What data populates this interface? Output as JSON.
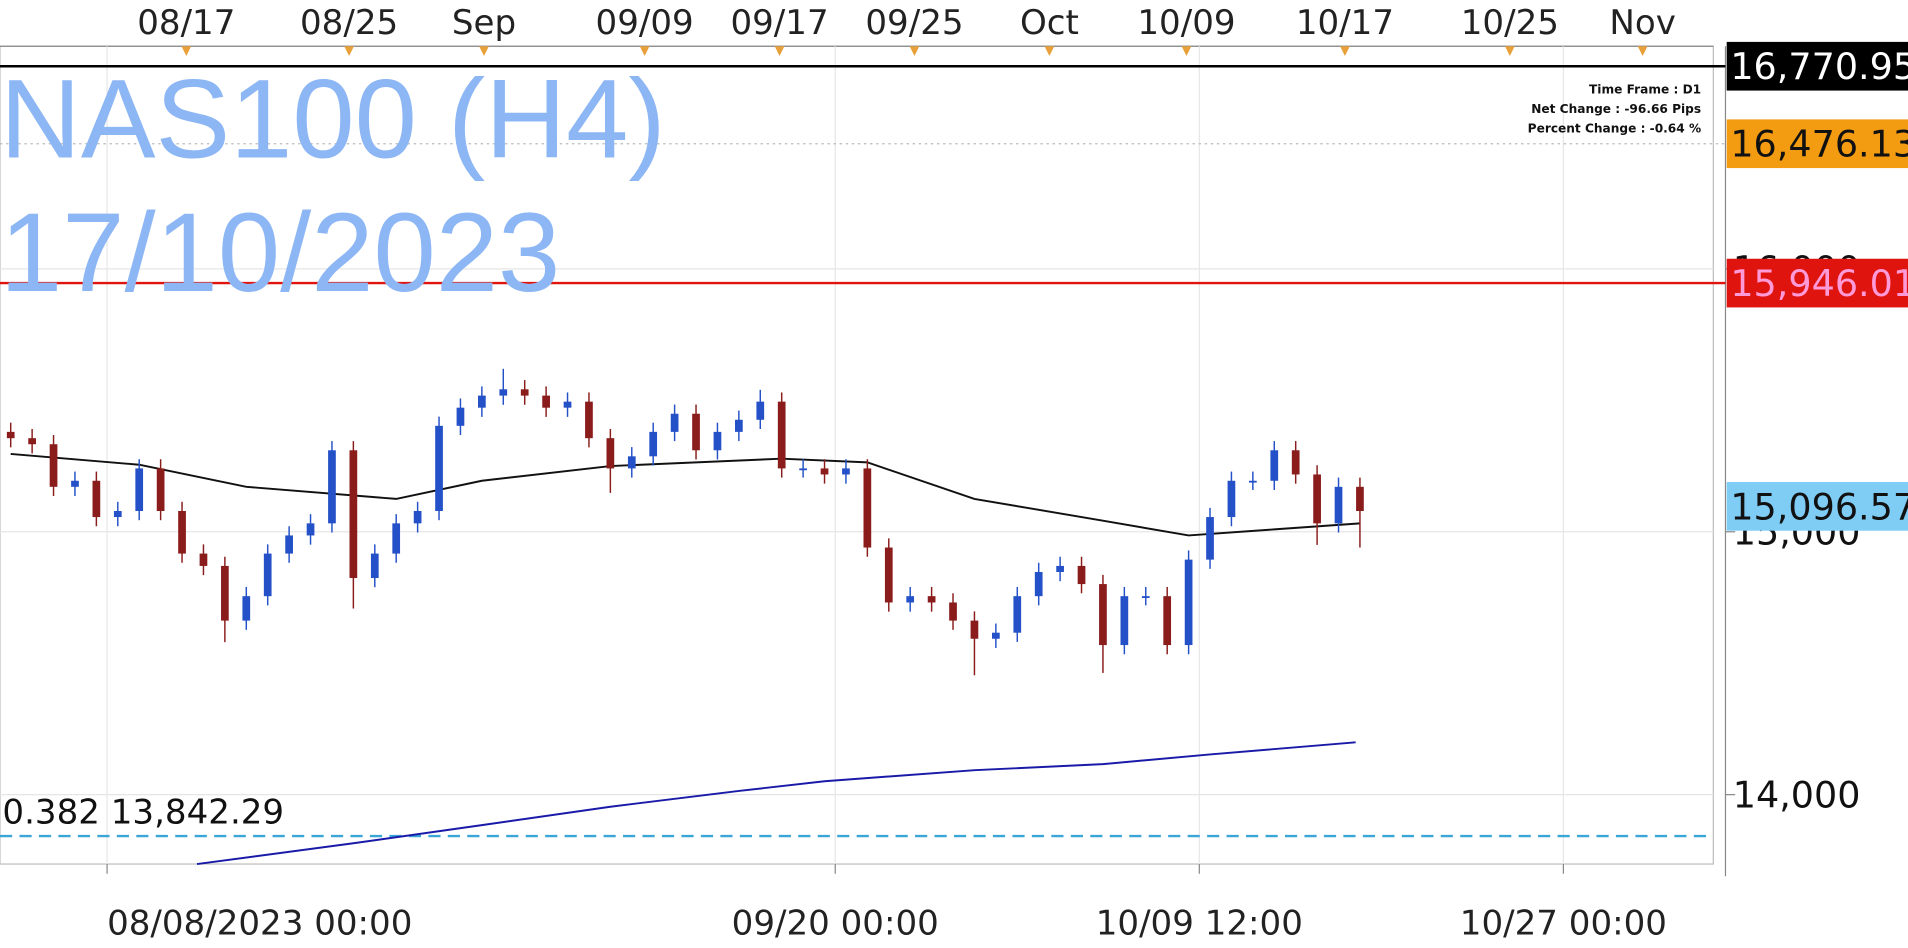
{
  "chart_data": {
    "type": "candlestick",
    "title": "NAS100 (H4)",
    "subtitle": "17/10/2023",
    "info": [
      "Time Frame : D1",
      "Net Change : -96.66 Pips",
      "Percent Change : -0.64 %"
    ],
    "xlim": [
      0,
      80
    ],
    "ylim": [
      13736,
      16847
    ],
    "yticks": [
      {
        "value": 14000,
        "label": "14,000"
      },
      {
        "value": 15000,
        "label": "15,000"
      },
      {
        "value": 16000,
        "label": "16,000"
      }
    ],
    "top_xticks": [
      {
        "value": 8.7,
        "label": "08/17"
      },
      {
        "value": 16.3,
        "label": "08/25"
      },
      {
        "value": 22.6,
        "label": "Sep"
      },
      {
        "value": 30.1,
        "label": "09/09"
      },
      {
        "value": 36.4,
        "label": "09/17"
      },
      {
        "value": 42.7,
        "label": "09/25"
      },
      {
        "value": 49,
        "label": "Oct"
      },
      {
        "value": 55.4,
        "label": "10/09"
      },
      {
        "value": 62.8,
        "label": "10/17"
      },
      {
        "value": 70.5,
        "label": "10/25"
      },
      {
        "value": 76.7,
        "label": "Nov"
      }
    ],
    "bottom_xticks": [
      {
        "value": 5,
        "label": "08/08/2023 00:00"
      },
      {
        "value": 39,
        "label": "09/20 00:00"
      },
      {
        "value": 56,
        "label": "10/09 12:00"
      },
      {
        "value": 73,
        "label": "10/27 00:00"
      }
    ],
    "grid": true,
    "up_color": "#2451c8",
    "down_color": "#8a1c1c",
    "open": [
      15380,
      15356,
      15333,
      15171,
      15194,
      15056,
      15079,
      15241,
      15079,
      14917,
      14870,
      14662,
      14755,
      14917,
      14986,
      15032,
      15310,
      14824,
      14917,
      15032,
      15079,
      15403,
      15472,
      15518,
      15542,
      15518,
      15472,
      15495,
      15356,
      15241,
      15287,
      15380,
      15449,
      15310,
      15380,
      15426,
      15495,
      15241,
      15241,
      15218,
      15241,
      14940,
      14731,
      14755,
      14731,
      14662,
      14593,
      14616,
      14755,
      14847,
      14870,
      14801,
      14569,
      14755,
      14755,
      14569,
      14894,
      15056,
      15194,
      15194,
      15310,
      15218,
      15032,
      15171
    ],
    "high": [
      15415,
      15391,
      15368,
      15229,
      15229,
      15114,
      15276,
      15276,
      15114,
      14952,
      14905,
      14790,
      14952,
      15021,
      15067,
      15345,
      15345,
      14952,
      15067,
      15114,
      15438,
      15507,
      15553,
      15620,
      15577,
      15553,
      15530,
      15530,
      15391,
      15322,
      15415,
      15484,
      15484,
      15415,
      15461,
      15540,
      15530,
      15276,
      15276,
      15276,
      15276,
      14975,
      14790,
      14790,
      14766,
      14697,
      14651,
      14790,
      14882,
      14905,
      14905,
      14836,
      14790,
      14790,
      14790,
      14929,
      15091,
      15229,
      15229,
      15345,
      15345,
      15253,
      15206,
      15206
    ],
    "low": [
      15321,
      15298,
      15136,
      15136,
      15021,
      15021,
      15044,
      15044,
      14882,
      14835,
      14580,
      14627,
      14720,
      14882,
      14951,
      14997,
      14708,
      14789,
      14882,
      14997,
      15044,
      15368,
      15437,
      15483,
      15483,
      15437,
      15437,
      15321,
      15148,
      15206,
      15252,
      15345,
      15275,
      15275,
      15345,
      15391,
      15206,
      15206,
      15183,
      15183,
      14905,
      14696,
      14696,
      14696,
      14627,
      14454,
      14558,
      14581,
      14720,
      14812,
      14766,
      14463,
      14534,
      14720,
      14534,
      14534,
      14859,
      15021,
      15159,
      15159,
      15183,
      14950,
      14997,
      14940
    ],
    "close": [
      15356,
      15333,
      15171,
      15194,
      15056,
      15079,
      15241,
      15079,
      14917,
      14870,
      14662,
      14755,
      14917,
      14986,
      15032,
      15310,
      14824,
      14917,
      15032,
      15079,
      15403,
      15472,
      15518,
      15542,
      15518,
      15472,
      15495,
      15356,
      15241,
      15287,
      15380,
      15449,
      15310,
      15380,
      15426,
      15495,
      15241,
      15241,
      15218,
      15241,
      14940,
      14731,
      14755,
      14731,
      14662,
      14593,
      14616,
      14755,
      14847,
      14870,
      14801,
      14569,
      14755,
      14755,
      14569,
      14894,
      15056,
      15194,
      15194,
      15310,
      15218,
      15032,
      15171,
      15079
    ],
    "lines": [
      {
        "color": "#111111",
        "x": [
          0.5,
          6.5,
          11.5,
          18.5,
          22.5,
          28.5,
          36.5,
          40.5,
          45.5,
          51.5,
          55.5,
          59.5,
          63.5
        ],
        "values": [
          15296,
          15255,
          15171,
          15125,
          15194,
          15250,
          15278,
          15264,
          15125,
          15042,
          14986,
          15009,
          15032
        ]
      },
      {
        "color": "#1a1aa8",
        "x": [
          9.2,
          16.5,
          22.5,
          28.5,
          34.5,
          38.5,
          45.5,
          51.5,
          56.5,
          63.3
        ],
        "values": [
          13736,
          13815,
          13884,
          13954,
          14014,
          14051,
          14093,
          14116,
          14153,
          14199
        ]
      }
    ],
    "levels": [
      {
        "value": 16770.95,
        "label": "16,770.95",
        "color": "#000000",
        "text_color": "#ffffff",
        "line": "solid"
      },
      {
        "value": 16476.13,
        "label": "16,476.13",
        "color": "#f39c12",
        "text_color": "#111111",
        "line": "dotted"
      },
      {
        "value": 15946.01,
        "label": "15,946.01",
        "color": "#e0140f",
        "text_color": "#ff9ad8",
        "line": "solid"
      },
      {
        "value": 15096.57,
        "label": "15,096.57",
        "color": "#7fcdf5",
        "text_color": "#111111",
        "line": "none"
      }
    ],
    "fib": {
      "value": 13842.29,
      "label": "0.382 13,842.29",
      "color": "#3aa6d8"
    }
  }
}
